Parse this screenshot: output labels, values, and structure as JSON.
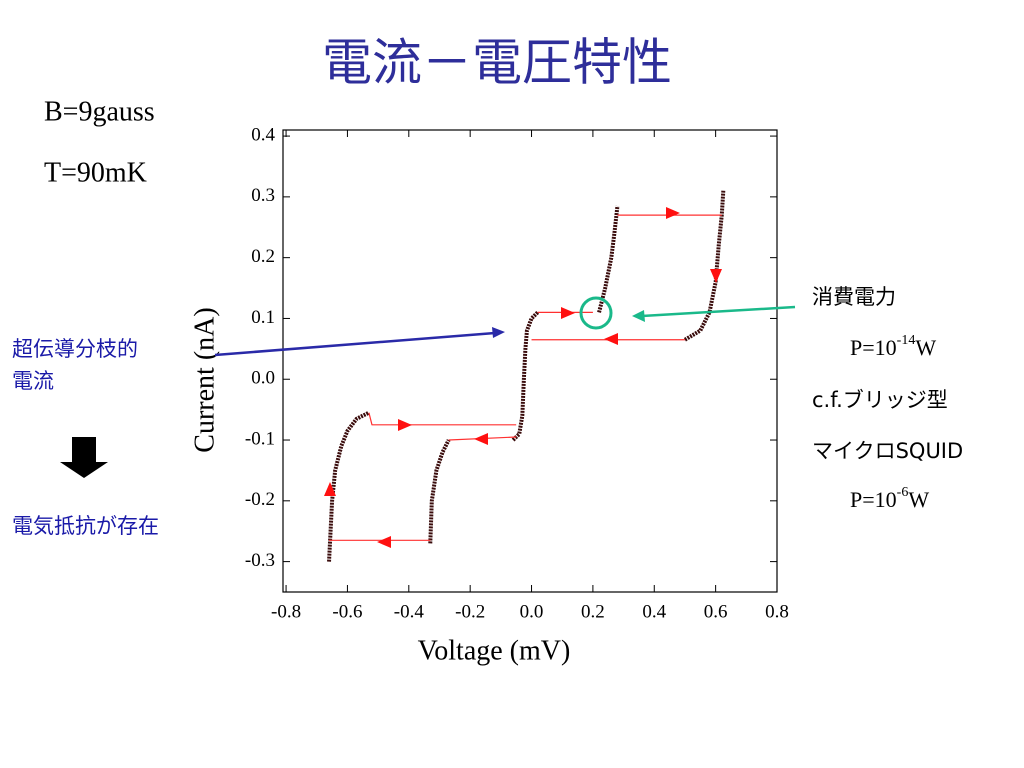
{
  "slide": {
    "title": "電流－電圧特性",
    "left_notes": [
      "B=9gauss",
      "T=90mK"
    ],
    "branch_label": [
      "超伝導分枝的",
      "電流"
    ],
    "resistance_label": "電気抵抗が存在",
    "power_title": "消費電力",
    "power_this": {
      "base": "P=10",
      "exp": "-14",
      "unit": "W"
    },
    "compare_1": "c.f.ブリッジ型",
    "compare_2": "マイクロSQUID",
    "power_squid": {
      "base": "P=10",
      "exp": "-6",
      "unit": "W"
    }
  },
  "chart_data": {
    "type": "line",
    "x_label": "Voltage (mV)",
    "y_label": "Current (nA)",
    "xlim": [
      -0.81,
      0.8
    ],
    "ylim": [
      -0.35,
      0.41
    ],
    "xticks": [
      -0.8,
      -0.6,
      -0.4,
      -0.2,
      {
        "value": 0,
        "label": "0.0"
      },
      0.2,
      0.4,
      0.6,
      0.8
    ],
    "yticks": [
      -0.3,
      -0.2,
      -0.1,
      {
        "value": 0,
        "label": "0.0"
      },
      0.1,
      0.2,
      0.3,
      0.4
    ],
    "series": [
      {
        "color": "#3a0c0c",
        "x": [
          -0.66,
          -0.655,
          -0.65,
          -0.64,
          -0.62,
          -0.6,
          -0.57,
          -0.53
        ],
        "values": [
          -0.3,
          -0.25,
          -0.2,
          -0.15,
          -0.11,
          -0.085,
          -0.065,
          -0.055
        ]
      },
      {
        "color": "#3a0c0c",
        "x": [
          -0.33,
          -0.325,
          -0.31,
          -0.29,
          -0.27
        ],
        "values": [
          -0.27,
          -0.2,
          -0.15,
          -0.12,
          -0.1
        ]
      },
      {
        "color": "#3a0c0c",
        "x": [
          -0.06,
          -0.04,
          -0.03,
          -0.025,
          -0.02,
          -0.015,
          0.0,
          0.02
        ],
        "values": [
          -0.1,
          -0.09,
          -0.06,
          0.0,
          0.05,
          0.08,
          0.1,
          0.11
        ]
      },
      {
        "color": "#3a0c0c",
        "x": [
          0.22,
          0.24,
          0.26,
          0.27,
          0.28
        ],
        "values": [
          0.11,
          0.15,
          0.2,
          0.24,
          0.285
        ]
      },
      {
        "color": "#3a0c0c",
        "x": [
          0.5,
          0.55,
          0.58,
          0.6,
          0.61,
          0.62,
          0.625
        ],
        "values": [
          0.065,
          0.08,
          0.11,
          0.16,
          0.22,
          0.27,
          0.31
        ]
      },
      {
        "color": "#ff3030",
        "x": [
          -0.53,
          -0.52,
          -0.05
        ],
        "values": [
          -0.055,
          -0.075,
          -0.075
        ]
      },
      {
        "color": "#ff3030",
        "x": [
          -0.27,
          -0.05
        ],
        "values": [
          -0.1,
          -0.095
        ]
      },
      {
        "color": "#ff3030",
        "x": [
          -0.33,
          -0.66
        ],
        "values": [
          -0.265,
          -0.265
        ]
      },
      {
        "color": "#ff3030",
        "x": [
          0.02,
          0.2
        ],
        "values": [
          0.11,
          0.11
        ]
      },
      {
        "color": "#ff3030",
        "x": [
          0.28,
          0.62
        ],
        "values": [
          0.27,
          0.27
        ]
      },
      {
        "color": "#ff3030",
        "x": [
          0.5,
          0.0
        ],
        "values": [
          0.065,
          0.065
        ]
      }
    ]
  }
}
